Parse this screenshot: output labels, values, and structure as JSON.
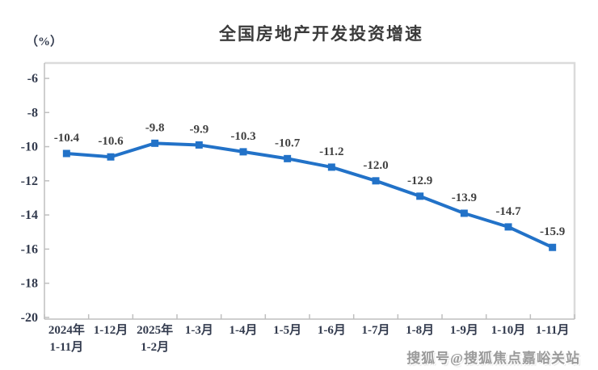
{
  "header": {
    "title": "全国房地产开发投资增速",
    "unit_label": "（%）"
  },
  "watermark": {
    "text": "搜狐号@搜狐焦点嘉峪关站"
  },
  "chart_data": {
    "type": "line",
    "title": "全国房地产开发投资增速",
    "xlabel": "",
    "ylabel": "（%）",
    "categories": [
      "2024年\n1-11月",
      "1-12月",
      "2025年\n1-2月",
      "1-3月",
      "1-4月",
      "1-5月",
      "1-6月",
      "1-7月",
      "1-8月",
      "1-9月",
      "1-10月",
      "1-11月"
    ],
    "values": [
      -10.4,
      -10.6,
      -9.8,
      -9.9,
      -10.3,
      -10.7,
      -11.2,
      -12.0,
      -12.9,
      -13.9,
      -14.7,
      -15.9
    ],
    "data_labels": [
      "-10.4",
      "-10.6",
      "-9.8",
      "-9.9",
      "-10.3",
      "-10.7",
      "-11.2",
      "-12.0",
      "-12.9",
      "-13.9",
      "-14.7",
      "-15.9"
    ],
    "yticks": [
      "-6",
      "-8",
      "-10",
      "-12",
      "-14",
      "-16",
      "-18",
      "-20"
    ],
    "ytick_values": [
      -6,
      -8,
      -10,
      -12,
      -14,
      -16,
      -18,
      -20
    ],
    "ylim": [
      -20.1,
      -5.1
    ],
    "grid": false,
    "legend": "none",
    "marker": "square",
    "colors": {
      "line": "#2272c8",
      "marker": "#2272c8",
      "data_label": "#404040",
      "tick_label": "#333b4e",
      "axis_line": "#bfbfbf",
      "plot_border": "#dbdbdb"
    }
  }
}
